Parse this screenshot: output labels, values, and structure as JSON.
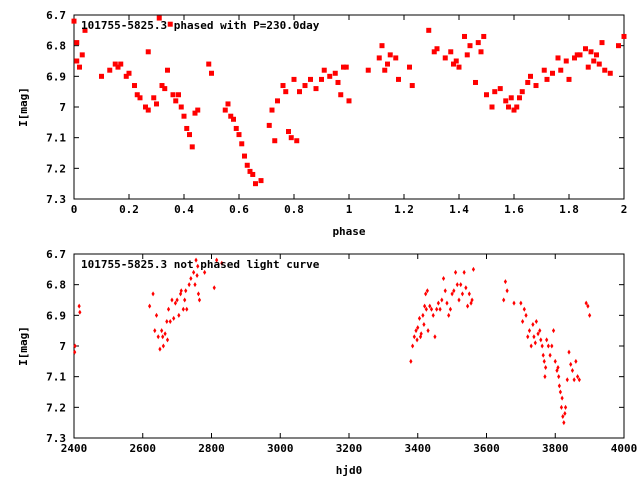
{
  "colors": {
    "points": "#ff0000",
    "axes": "#000000",
    "background": "#ffffff"
  },
  "chart_data": [
    {
      "type": "scatter",
      "title": "101755-5825.3 phased with P=230.0day",
      "xlabel": "phase",
      "ylabel": "I[mag]",
      "xlim": [
        0,
        2
      ],
      "ylim": [
        6.7,
        7.3
      ],
      "y_inverted": true,
      "grid": false,
      "marker": "filled-square",
      "xticks": [
        "0",
        "0.2",
        "0.4",
        "0.6",
        "0.8",
        "1",
        "1.2",
        "1.4",
        "1.6",
        "1.8",
        "2"
      ],
      "yticks": [
        "6.7",
        "6.8",
        "6.9",
        "7",
        "7.1",
        "7.2",
        "7.3"
      ],
      "series": [
        {
          "x": [
            0.0,
            0.01,
            0.01,
            0.02,
            0.03,
            0.04,
            0.1,
            0.13,
            0.15,
            0.16,
            0.17,
            0.19,
            0.2,
            0.22,
            0.23,
            0.24,
            0.26,
            0.27,
            0.27,
            0.29,
            0.3,
            0.31,
            0.32,
            0.33,
            0.34,
            0.35,
            0.36,
            0.37,
            0.38,
            0.39,
            0.4,
            0.41,
            0.42,
            0.43,
            0.44,
            0.45,
            0.49,
            0.5,
            0.55,
            0.56,
            0.57,
            0.58,
            0.59,
            0.6,
            0.61,
            0.62,
            0.63,
            0.64,
            0.65,
            0.66,
            0.68,
            0.71,
            0.72,
            0.73,
            0.74,
            0.76,
            0.77,
            0.78,
            0.79,
            0.8,
            0.81,
            0.82,
            0.84,
            0.86,
            0.88,
            0.9,
            0.91,
            0.93,
            0.95,
            0.96,
            0.97,
            0.98,
            0.99,
            1.0,
            1.07,
            1.11,
            1.12,
            1.13,
            1.14,
            1.15,
            1.17,
            1.18,
            1.22,
            1.23,
            1.29,
            1.31,
            1.32,
            1.35,
            1.37,
            1.38,
            1.39,
            1.4,
            1.42,
            1.43,
            1.44,
            1.46,
            1.47,
            1.48,
            1.49,
            1.5,
            1.52,
            1.53,
            1.55,
            1.57,
            1.58,
            1.59,
            1.6,
            1.61,
            1.62,
            1.63,
            1.65,
            1.66,
            1.68,
            1.71,
            1.72,
            1.74,
            1.76,
            1.77,
            1.79,
            1.8,
            1.82,
            1.83,
            1.84,
            1.86,
            1.87,
            1.88,
            1.89,
            1.9,
            1.91,
            1.92,
            1.93,
            1.95,
            1.98,
            2.0
          ],
          "y": [
            6.72,
            6.85,
            6.79,
            6.87,
            6.83,
            6.75,
            6.9,
            6.88,
            6.86,
            6.87,
            6.86,
            6.9,
            6.89,
            6.93,
            6.96,
            6.97,
            7.0,
            6.82,
            7.01,
            6.97,
            6.99,
            6.71,
            6.93,
            6.94,
            6.88,
            6.73,
            6.96,
            6.98,
            6.96,
            7.0,
            7.03,
            7.07,
            7.09,
            7.13,
            7.02,
            7.01,
            6.86,
            6.89,
            7.01,
            6.99,
            7.03,
            7.04,
            7.07,
            7.09,
            7.12,
            7.16,
            7.19,
            7.21,
            7.22,
            7.25,
            7.24,
            7.06,
            7.01,
            7.11,
            6.98,
            6.93,
            6.95,
            7.08,
            7.1,
            6.91,
            7.11,
            6.95,
            6.93,
            6.91,
            6.94,
            6.91,
            6.88,
            6.9,
            6.89,
            6.92,
            6.96,
            6.87,
            6.87,
            6.98,
            6.88,
            6.84,
            6.8,
            6.88,
            6.86,
            6.83,
            6.84,
            6.91,
            6.87,
            6.93,
            6.75,
            6.82,
            6.81,
            6.84,
            6.82,
            6.86,
            6.85,
            6.87,
            6.77,
            6.83,
            6.8,
            6.92,
            6.79,
            6.82,
            6.77,
            6.96,
            7.0,
            6.95,
            6.94,
            6.98,
            7.0,
            6.97,
            7.01,
            7.0,
            6.97,
            6.95,
            6.92,
            6.9,
            6.93,
            6.88,
            6.91,
            6.89,
            6.84,
            6.88,
            6.85,
            6.91,
            6.84,
            6.83,
            6.83,
            6.81,
            6.87,
            6.82,
            6.85,
            6.83,
            6.86,
            6.79,
            6.88,
            6.89,
            6.8,
            6.77
          ]
        }
      ]
    },
    {
      "type": "scatter",
      "title": "101755-5825.3 not phased light curve",
      "xlabel": "hjd0",
      "ylabel": "I[mag]",
      "xlim": [
        2400,
        4000
      ],
      "ylim": [
        6.7,
        7.3
      ],
      "y_inverted": true,
      "grid": false,
      "marker": "filled-diamond",
      "xticks": [
        "2400",
        "2600",
        "2800",
        "3000",
        "3200",
        "3400",
        "3600",
        "3800",
        "4000"
      ],
      "yticks": [
        "6.7",
        "6.8",
        "6.9",
        "7",
        "7.1",
        "7.2",
        "7.3"
      ],
      "series": [
        {
          "x": [
            2402,
            2403,
            2415,
            2417,
            2620,
            2630,
            2635,
            2640,
            2645,
            2650,
            2655,
            2658,
            2660,
            2665,
            2670,
            2672,
            2675,
            2680,
            2685,
            2690,
            2695,
            2700,
            2705,
            2710,
            2712,
            2718,
            2722,
            2725,
            2728,
            2735,
            2740,
            2748,
            2752,
            2755,
            2758,
            2760,
            2762,
            2765,
            2780,
            2808,
            2815,
            2830,
            3380,
            3385,
            3390,
            3395,
            3398,
            3400,
            3405,
            3408,
            3410,
            3415,
            3418,
            3420,
            3423,
            3425,
            3428,
            3430,
            3435,
            3440,
            3445,
            3450,
            3455,
            3460,
            3465,
            3470,
            3475,
            3480,
            3485,
            3490,
            3495,
            3500,
            3505,
            3510,
            3515,
            3520,
            3525,
            3530,
            3535,
            3540,
            3545,
            3550,
            3555,
            3558,
            3562,
            3650,
            3655,
            3660,
            3680,
            3700,
            3705,
            3710,
            3715,
            3720,
            3725,
            3730,
            3735,
            3738,
            3742,
            3745,
            3750,
            3755,
            3758,
            3762,
            3765,
            3768,
            3770,
            3772,
            3775,
            3780,
            3785,
            3790,
            3795,
            3800,
            3805,
            3808,
            3810,
            3812,
            3815,
            3818,
            3820,
            3822,
            3825,
            3828,
            3830,
            3835,
            3840,
            3845,
            3850,
            3855,
            3860,
            3865,
            3870,
            3890,
            3895,
            3900
          ],
          "y": [
            7.02,
            7.0,
            6.87,
            6.89,
            6.87,
            6.83,
            6.95,
            6.9,
            6.97,
            7.01,
            6.95,
            6.97,
            7.0,
            6.96,
            6.92,
            6.98,
            6.88,
            6.92,
            6.85,
            6.91,
            6.86,
            6.85,
            6.9,
            6.83,
            6.82,
            6.88,
            6.85,
            6.82,
            6.88,
            6.8,
            6.78,
            6.76,
            6.8,
            6.72,
            6.77,
            6.74,
            6.83,
            6.85,
            6.76,
            6.81,
            6.72,
            6.73,
            7.05,
            7.0,
            6.97,
            6.95,
            6.98,
            6.94,
            6.91,
            6.97,
            6.96,
            6.9,
            6.93,
            6.87,
            6.83,
            6.88,
            6.82,
            6.95,
            6.87,
            6.88,
            6.9,
            6.97,
            6.88,
            6.86,
            6.88,
            6.85,
            6.78,
            6.82,
            6.86,
            6.9,
            6.88,
            6.83,
            6.82,
            6.76,
            6.8,
            6.85,
            6.8,
            6.83,
            6.76,
            6.81,
            6.87,
            6.83,
            6.86,
            6.85,
            6.75,
            6.85,
            6.79,
            6.82,
            6.86,
            6.86,
            6.92,
            6.88,
            6.9,
            6.97,
            6.95,
            7.0,
            6.93,
            6.97,
            6.99,
            6.92,
            6.96,
            6.95,
            6.98,
            7.0,
            7.03,
            7.05,
            7.1,
            7.07,
            6.98,
            7.0,
            7.03,
            7.0,
            6.95,
            7.05,
            7.08,
            7.07,
            7.1,
            7.13,
            7.15,
            7.2,
            7.17,
            7.23,
            7.25,
            7.22,
            7.2,
            7.11,
            7.02,
            7.06,
            7.08,
            7.11,
            7.05,
            7.1,
            7.11,
            6.86,
            6.87,
            6.9
          ]
        }
      ]
    }
  ]
}
